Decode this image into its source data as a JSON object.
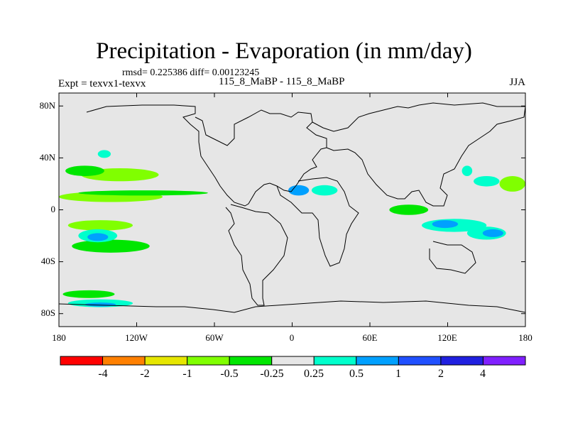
{
  "figure": {
    "title": "Precipitation - Evaporation (in mm/day)",
    "stats": "rmsd= 0.225386 diff= 0.00123245",
    "expt": "Expt = texvx1-texvx",
    "subtitle": "115_8_MaBP - 115_8_MaBP",
    "season": "JJA"
  },
  "chart_data": {
    "type": "heatmap",
    "title": "Precipitation - Evaporation (in mm/day)",
    "xlabel": "",
    "ylabel": "",
    "xlim": [
      -180,
      180
    ],
    "ylim": [
      -90,
      90
    ],
    "x_ticks": [
      -180,
      -120,
      -60,
      0,
      60,
      120,
      180
    ],
    "x_tick_labels": [
      "180",
      "120W",
      "60W",
      "0",
      "60E",
      "120E",
      "180"
    ],
    "y_ticks": [
      80,
      40,
      0,
      -40,
      -80
    ],
    "y_tick_labels": [
      "80N",
      "40N",
      "0",
      "40S",
      "80S"
    ],
    "colorbar": {
      "labels": [
        "-4",
        "-2",
        "-1",
        "-0.5",
        "-0.25",
        "0.25",
        "0.5",
        "1",
        "2",
        "4"
      ],
      "colors": [
        "#ff0000",
        "#ff8000",
        "#e6e600",
        "#80ff00",
        "#00e600",
        "#e6e6e6",
        "#00ffcc",
        "#00a0ff",
        "#2050ff",
        "#2020e0",
        "#8020ff"
      ]
    },
    "regions": [
      {
        "level": "-0.5",
        "color": "#80ff00",
        "lon": -133,
        "lat": 27,
        "rx": 30,
        "ry": 5
      },
      {
        "level": "-0.25",
        "color": "#00e600",
        "lon": -160,
        "lat": 30,
        "rx": 15,
        "ry": 4
      },
      {
        "level": "-0.5",
        "color": "#80ff00",
        "lon": -140,
        "lat": 10,
        "rx": 40,
        "ry": 4
      },
      {
        "level": "-0.25",
        "color": "#00e600",
        "lon": -115,
        "lat": 13,
        "rx": 50,
        "ry": 2
      },
      {
        "level": "-0.5",
        "color": "#80ff00",
        "lon": -148,
        "lat": -12,
        "rx": 25,
        "ry": 4
      },
      {
        "level": "-0.25",
        "color": "#00e600",
        "lon": -140,
        "lat": -28,
        "rx": 30,
        "ry": 5
      },
      {
        "level": "-0.25",
        "color": "#00e600",
        "lon": -157,
        "lat": -65,
        "rx": 20,
        "ry": 3
      },
      {
        "level": "-0.25",
        "color": "#00e600",
        "lon": 90,
        "lat": 0,
        "rx": 15,
        "ry": 4
      },
      {
        "level": "-0.5",
        "color": "#80ff00",
        "lon": 170,
        "lat": 20,
        "rx": 10,
        "ry": 6
      },
      {
        "level": "0.25",
        "color": "#00ffcc",
        "lon": 150,
        "lat": 22,
        "rx": 10,
        "ry": 4
      },
      {
        "level": "0.25",
        "color": "#00ffcc",
        "lon": -145,
        "lat": 43,
        "rx": 5,
        "ry": 3
      },
      {
        "level": "0.25",
        "color": "#00ffcc",
        "lon": -150,
        "lat": -20,
        "rx": 15,
        "ry": 5
      },
      {
        "level": "0.5",
        "color": "#00a0ff",
        "lon": -150,
        "lat": -21,
        "rx": 8,
        "ry": 3
      },
      {
        "level": "0.25",
        "color": "#00ffcc",
        "lon": -148,
        "lat": -72,
        "rx": 25,
        "ry": 3
      },
      {
        "level": "0.5",
        "color": "#00a0ff",
        "lon": -148,
        "lat": -73,
        "rx": 12,
        "ry": 1.5
      },
      {
        "level": "0.5",
        "color": "#00a0ff",
        "lon": 5,
        "lat": 15,
        "rx": 8,
        "ry": 4
      },
      {
        "level": "0.25",
        "color": "#00ffcc",
        "lon": 25,
        "lat": 15,
        "rx": 10,
        "ry": 4
      },
      {
        "level": "0.25",
        "color": "#00ffcc",
        "lon": 125,
        "lat": -12,
        "rx": 25,
        "ry": 5
      },
      {
        "level": "0.5",
        "color": "#00a0ff",
        "lon": 118,
        "lat": -11,
        "rx": 10,
        "ry": 3
      },
      {
        "level": "0.25",
        "color": "#00ffcc",
        "lon": 150,
        "lat": -18,
        "rx": 15,
        "ry": 5
      },
      {
        "level": "0.5",
        "color": "#00a0ff",
        "lon": 155,
        "lat": -18,
        "rx": 8,
        "ry": 3
      },
      {
        "level": "0.25",
        "color": "#00ffcc",
        "lon": 135,
        "lat": 30,
        "rx": 4,
        "ry": 4
      }
    ]
  }
}
